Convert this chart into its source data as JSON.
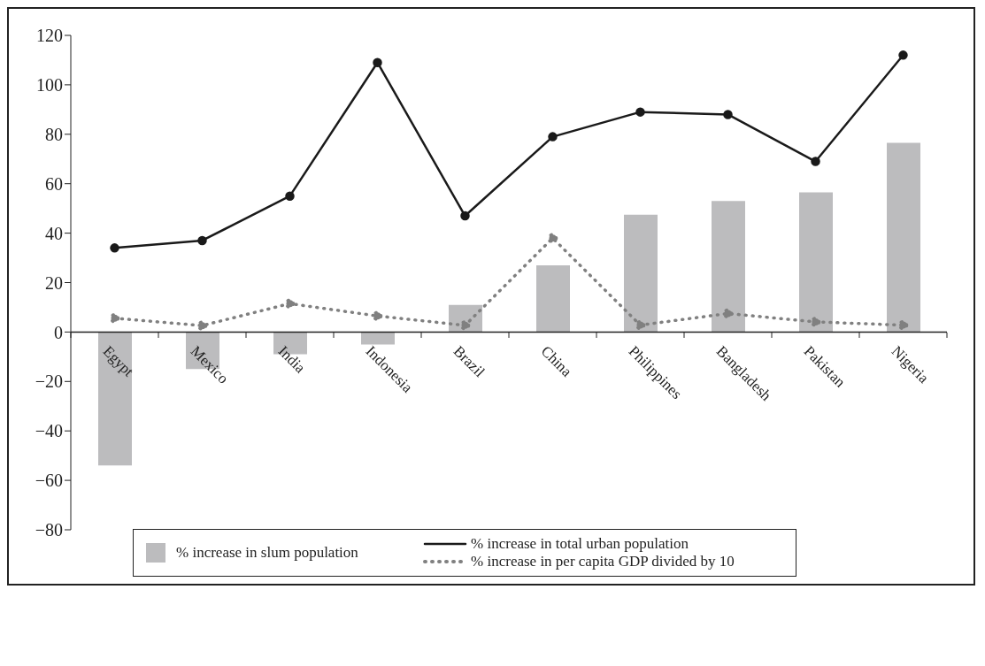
{
  "chart_data": {
    "type": "bar",
    "categories": [
      "Egypt",
      "Mexico",
      "India",
      "Indonesia",
      "Brazil",
      "China",
      "Philippines",
      "Bangladesh",
      "Pakistan",
      "Nigeria"
    ],
    "series": [
      {
        "name": "% increase in slum population",
        "color": "#bcbcbe",
        "values": [
          -54,
          -15,
          -9,
          -5,
          11,
          27,
          47.5,
          53,
          56.5,
          76.5
        ]
      },
      {
        "name": "% increase in total urban population",
        "type": "line",
        "color": "#1a1a1a",
        "line_style": "solid",
        "values": [
          34,
          37,
          55,
          109,
          47,
          79,
          89,
          88,
          69,
          112
        ]
      },
      {
        "name": "% increase in per capita GDP divided by 10",
        "type": "line",
        "color": "#808080",
        "line_style": "dotted",
        "values": [
          5.6,
          2.6,
          11.5,
          6.5,
          2.7,
          38,
          2.8,
          7.5,
          4.1,
          2.8
        ]
      }
    ],
    "ylim": [
      -80,
      120
    ],
    "yticks": [
      -80,
      -60,
      -40,
      -20,
      0,
      20,
      40,
      60,
      80,
      100,
      120
    ],
    "marker": "circle",
    "legend": "bottom"
  }
}
